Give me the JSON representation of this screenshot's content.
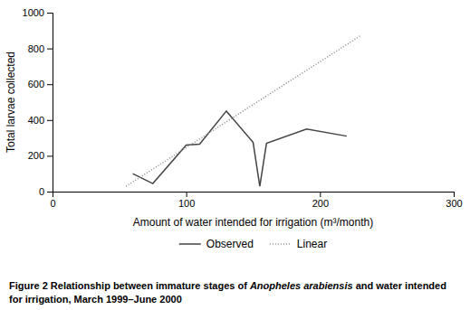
{
  "chart_data": {
    "type": "line",
    "x_label": "Amount of water intended for irrigation (m³/month)",
    "y_label": "Total larvae collected",
    "series": [
      {
        "name": "Observed",
        "color": "#444444",
        "line_style": "solid",
        "x": [
          60,
          75,
          100,
          110,
          130,
          150,
          155,
          160,
          190,
          220
        ],
        "values": [
          100,
          45,
          260,
          265,
          450,
          275,
          30,
          270,
          350,
          310
        ]
      },
      {
        "name": "Linear",
        "color": "#888888",
        "line_style": "dotted",
        "x": [
          55,
          230
        ],
        "values": [
          30,
          870
        ]
      }
    ],
    "xlim": [
      0,
      300
    ],
    "ylim": [
      0,
      1000
    ],
    "xticks": [
      0,
      100,
      200,
      300
    ],
    "yticks": [
      0,
      200,
      400,
      600,
      800,
      1000
    ],
    "grid": false,
    "legend": "bottom",
    "caption": [
      [
        {
          "text": "Figure 2 Relationship between immature stages of ",
          "italic": false
        },
        {
          "text": "Anopheles arabiensis",
          "italic": true
        },
        {
          "text": " and water intended",
          "italic": false
        }
      ],
      [
        {
          "text": "for irrigation, March 1999–June 2000",
          "italic": false
        }
      ]
    ]
  }
}
